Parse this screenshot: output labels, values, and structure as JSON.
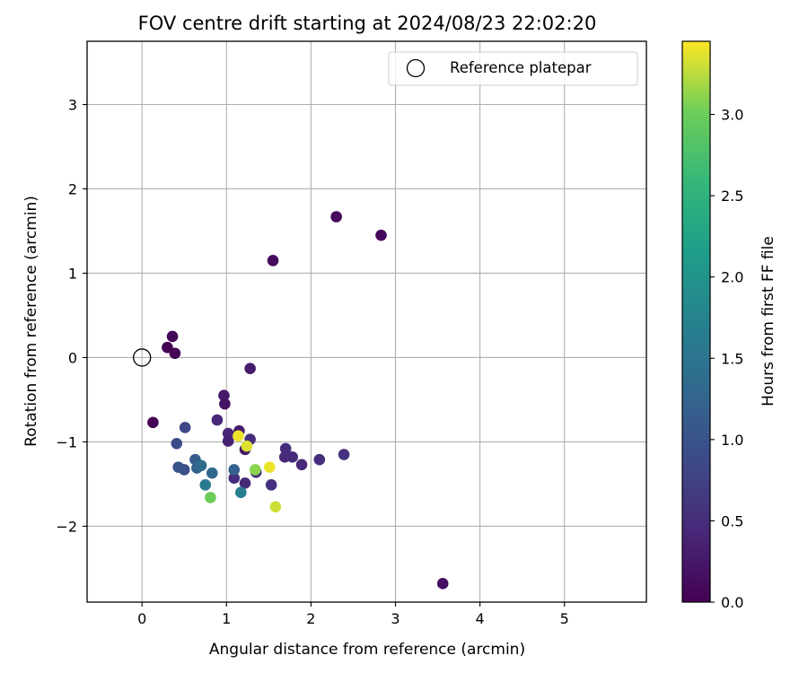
{
  "chart_data": {
    "type": "scatter",
    "title": "FOV centre drift starting at 2024/08/23 22:02:20",
    "xlabel": "Angular distance from reference (arcmin)",
    "ylabel": "Rotation from reference (arcmin)",
    "xlim": [
      -0.65,
      5.97
    ],
    "ylim": [
      -2.9,
      3.75
    ],
    "x_ticks": [
      0,
      1,
      2,
      3,
      4,
      5
    ],
    "y_ticks": [
      -2,
      -1,
      0,
      1,
      2,
      3
    ],
    "x_tick_labels": [
      "0",
      "1",
      "2",
      "3",
      "4",
      "5"
    ],
    "y_tick_labels": [
      "−2",
      "−1",
      "0",
      "1",
      "2",
      "3"
    ],
    "grid": true,
    "legend": {
      "position": "top-right",
      "entries": [
        "Reference platepar"
      ]
    },
    "colorbar": {
      "label": "Hours from first FF file",
      "colormap": "viridis",
      "range": [
        0,
        3.45
      ],
      "ticks": [
        0,
        0.5,
        1,
        1.5,
        2,
        2.5,
        3
      ],
      "tick_labels": [
        "0.0",
        "0.5",
        "1.0",
        "1.5",
        "2.0",
        "2.5",
        "3.0"
      ]
    },
    "reference_point": {
      "x": 0,
      "y": 0,
      "name": "Reference platepar"
    },
    "points": [
      {
        "x": 0.13,
        "y": -0.77,
        "hours": 0.02
      },
      {
        "x": 0.3,
        "y": 0.12,
        "hours": 0.0
      },
      {
        "x": 0.36,
        "y": 0.25,
        "hours": 0.05
      },
      {
        "x": 0.39,
        "y": 0.05,
        "hours": 0.03
      },
      {
        "x": 1.55,
        "y": 1.15,
        "hours": 0.1
      },
      {
        "x": 2.3,
        "y": 1.67,
        "hours": 0.08
      },
      {
        "x": 2.83,
        "y": 1.45,
        "hours": 0.07
      },
      {
        "x": 3.56,
        "y": -2.68,
        "hours": 0.15
      },
      {
        "x": 0.97,
        "y": -0.45,
        "hours": 0.25
      },
      {
        "x": 0.98,
        "y": -0.55,
        "hours": 0.2
      },
      {
        "x": 1.28,
        "y": -0.13,
        "hours": 0.3
      },
      {
        "x": 0.89,
        "y": -0.74,
        "hours": 0.45
      },
      {
        "x": 1.02,
        "y": -0.9,
        "hours": 0.4
      },
      {
        "x": 1.02,
        "y": -0.99,
        "hours": 0.35
      },
      {
        "x": 1.15,
        "y": -0.87,
        "hours": 0.3
      },
      {
        "x": 1.22,
        "y": -1.09,
        "hours": 0.25
      },
      {
        "x": 1.28,
        "y": -0.97,
        "hours": 0.5
      },
      {
        "x": 1.09,
        "y": -1.43,
        "hours": 0.5
      },
      {
        "x": 1.22,
        "y": -1.49,
        "hours": 0.45
      },
      {
        "x": 1.35,
        "y": -1.36,
        "hours": 0.55
      },
      {
        "x": 1.53,
        "y": -1.51,
        "hours": 0.55
      },
      {
        "x": 1.69,
        "y": -1.18,
        "hours": 0.45
      },
      {
        "x": 1.7,
        "y": -1.08,
        "hours": 0.5
      },
      {
        "x": 1.78,
        "y": -1.18,
        "hours": 0.5
      },
      {
        "x": 1.89,
        "y": -1.27,
        "hours": 0.45
      },
      {
        "x": 2.1,
        "y": -1.21,
        "hours": 0.5
      },
      {
        "x": 2.39,
        "y": -1.15,
        "hours": 0.55
      },
      {
        "x": 0.51,
        "y": -0.83,
        "hours": 0.85
      },
      {
        "x": 0.41,
        "y": -1.02,
        "hours": 0.9
      },
      {
        "x": 0.43,
        "y": -1.3,
        "hours": 1.0
      },
      {
        "x": 0.5,
        "y": -1.33,
        "hours": 0.95
      },
      {
        "x": 0.63,
        "y": -1.21,
        "hours": 1.15
      },
      {
        "x": 0.65,
        "y": -1.31,
        "hours": 1.2
      },
      {
        "x": 0.7,
        "y": -1.28,
        "hours": 1.35
      },
      {
        "x": 0.75,
        "y": -1.51,
        "hours": 1.6
      },
      {
        "x": 0.83,
        "y": -1.37,
        "hours": 1.3
      },
      {
        "x": 1.09,
        "y": -1.33,
        "hours": 1.2
      },
      {
        "x": 1.17,
        "y": -1.6,
        "hours": 1.65
      },
      {
        "x": 0.81,
        "y": -1.66,
        "hours": 3.0
      },
      {
        "x": 1.14,
        "y": -0.93,
        "hours": 3.4
      },
      {
        "x": 1.24,
        "y": -1.05,
        "hours": 3.35
      },
      {
        "x": 1.34,
        "y": -1.33,
        "hours": 3.1
      },
      {
        "x": 1.51,
        "y": -1.3,
        "hours": 3.4
      },
      {
        "x": 1.58,
        "y": -1.77,
        "hours": 3.3
      }
    ]
  }
}
